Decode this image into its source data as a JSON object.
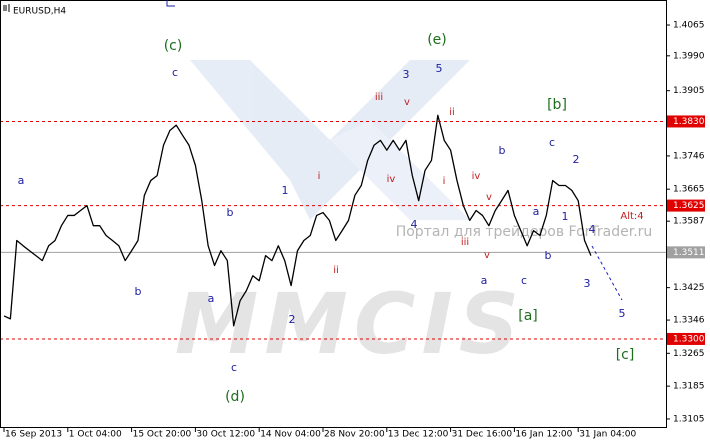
{
  "chart_data": {
    "type": "line",
    "title": "EURUSD,H4",
    "color": "#000000",
    "categories": [
      "16 Sep 2013",
      null,
      null,
      null,
      null,
      null,
      null,
      null,
      null,
      null,
      "1 Oct 04:00",
      null,
      null,
      null,
      null,
      null,
      null,
      null,
      null,
      null,
      "15 Oct 20:00",
      null,
      null,
      null,
      null,
      null,
      null,
      null,
      null,
      null,
      "30 Oct 12:00",
      null,
      null,
      null,
      null,
      null,
      null,
      null,
      null,
      null,
      "14 Nov 04:00",
      null,
      null,
      null,
      null,
      null,
      null,
      null,
      null,
      null,
      "28 Nov 20:00",
      null,
      null,
      null,
      null,
      null,
      null,
      null,
      null,
      null,
      "13 Dec 12:00",
      null,
      null,
      null,
      null,
      null,
      null,
      null,
      null,
      null,
      "31 Dec 16:00",
      null,
      null,
      null,
      null,
      null,
      null,
      null,
      null,
      null,
      "16 Jan 12:00",
      null,
      null,
      null,
      null,
      null,
      null,
      null,
      null,
      null,
      "31 Jan 04:00",
      null,
      null
    ],
    "values": [
      1.3356,
      1.3349,
      1.354,
      1.3527,
      1.3515,
      1.3503,
      1.3491,
      1.3527,
      1.354,
      1.3576,
      1.3601,
      1.3601,
      1.3613,
      1.3625,
      1.3576,
      1.3576,
      1.3552,
      1.354,
      1.3527,
      1.3491,
      1.3515,
      1.354,
      1.365,
      1.3686,
      1.3698,
      1.3772,
      1.3808,
      1.3821,
      1.3796,
      1.3772,
      1.3723,
      1.3637,
      1.3527,
      1.3479,
      1.3515,
      1.3491,
      1.3332,
      1.3393,
      1.3418,
      1.3454,
      1.3442,
      1.3503,
      1.3491,
      1.3527,
      1.3491,
      1.343,
      1.3515,
      1.354,
      1.3552,
      1.3601,
      1.3608,
      1.3589,
      1.354,
      1.3564,
      1.3589,
      1.365,
      1.3674,
      1.3735,
      1.3772,
      1.3784,
      1.376,
      1.3784,
      1.376,
      1.3784,
      1.3698,
      1.3637,
      1.3711,
      1.3735,
      1.3845,
      1.3784,
      1.376,
      1.3686,
      1.3625,
      1.3589,
      1.3613,
      1.3601,
      1.3576,
      1.3613,
      1.3637,
      1.3662,
      1.3601,
      1.3564,
      1.3527,
      1.3564,
      1.3552,
      1.3601,
      1.3686,
      1.3674,
      1.3674,
      1.3662,
      1.3637,
      1.354,
      1.3503
    ],
    "ylim": [
      1.3083,
      1.4126
    ],
    "yticks": [
      1.4065,
      {
        "value": 1.399,
        "label": "1.3990"
      },
      1.3905,
      1.3746,
      1.3665,
      1.3587,
      1.3425,
      1.3346,
      1.3265,
      1.3185,
      1.3105
    ],
    "levels": [
      {
        "value": 1.383,
        "label": "1.3830",
        "color": "#e00000"
      },
      {
        "value": 1.3625,
        "label": "1.3625",
        "color": "#e00000"
      },
      {
        "value": 1.33,
        "label": "1.3300",
        "color": "#e00000"
      }
    ],
    "current_price": {
      "value": 1.3511,
      "label": "1.3511",
      "color": "#a0a0a0"
    },
    "annotations": [
      {
        "text": "(c)",
        "color": "#1e6e1e"
      },
      {
        "text": "(e)",
        "color": "#1e6e1e"
      },
      {
        "text": "[b]",
        "color": "#1e6e1e"
      },
      {
        "text": "(d)",
        "color": "#1e6e1e"
      },
      {
        "text": "[a]",
        "color": "#1e6e1e"
      },
      {
        "text": "[c]",
        "color": "#1e6e1e"
      },
      {
        "text": "c",
        "color": "#2020a0"
      },
      {
        "text": "a",
        "color": "#2020a0"
      },
      {
        "text": "b",
        "color": "#2020a0"
      },
      {
        "text": "b",
        "color": "#2020a0"
      },
      {
        "text": "a",
        "color": "#2020a0"
      },
      {
        "text": "c",
        "color": "#2020a0"
      },
      {
        "text": "1",
        "color": "#2020a0"
      },
      {
        "text": "2",
        "color": "#2020a0"
      },
      {
        "text": "3",
        "color": "#2020a0"
      },
      {
        "text": "5",
        "color": "#2020a0"
      },
      {
        "text": "4",
        "color": "#2020a0"
      },
      {
        "text": "b",
        "color": "#2020a0"
      },
      {
        "text": "a",
        "color": "#2020a0"
      },
      {
        "text": "c",
        "color": "#2020a0"
      },
      {
        "text": "c",
        "color": "#2020a0"
      },
      {
        "text": "2",
        "color": "#2020a0"
      },
      {
        "text": "a",
        "color": "#2020a0"
      },
      {
        "text": "1",
        "color": "#2020a0"
      },
      {
        "text": "b",
        "color": "#2020a0"
      },
      {
        "text": "4",
        "color": "#2020a0"
      },
      {
        "text": "3",
        "color": "#2020a0"
      },
      {
        "text": "5",
        "color": "#2020a0"
      },
      {
        "text": "iii",
        "color": "#c02020"
      },
      {
        "text": "v",
        "color": "#c02020"
      },
      {
        "text": "ii",
        "color": "#c02020"
      },
      {
        "text": "i",
        "color": "#c02020"
      },
      {
        "text": "iv",
        "color": "#c02020"
      },
      {
        "text": "i",
        "color": "#c02020"
      },
      {
        "text": "iv",
        "color": "#c02020"
      },
      {
        "text": "iii",
        "color": "#c02020"
      },
      {
        "text": "v",
        "color": "#c02020"
      },
      {
        "text": "ii",
        "color": "#c02020"
      },
      {
        "text": "v",
        "color": "#c02020"
      },
      {
        "text": "Alt:4",
        "color": "#c02020"
      }
    ],
    "watermarks": [
      "Портал для трейдеров ForTrader.ru",
      "MMCIS"
    ]
  }
}
